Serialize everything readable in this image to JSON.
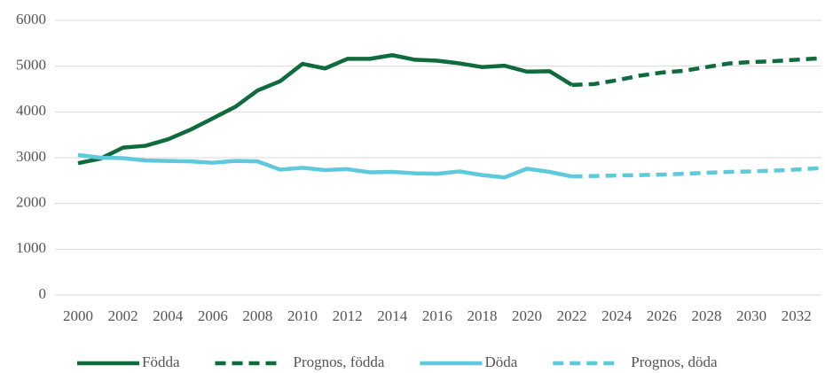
{
  "chart_data": {
    "type": "line",
    "x": [
      2000,
      2001,
      2002,
      2003,
      2004,
      2005,
      2006,
      2007,
      2008,
      2009,
      2010,
      2011,
      2012,
      2013,
      2014,
      2015,
      2016,
      2017,
      2018,
      2019,
      2020,
      2021,
      2022,
      2023,
      2024,
      2025,
      2026,
      2027,
      2028,
      2029,
      2030,
      2031,
      2032,
      2033
    ],
    "series": [
      {
        "name": "Födda",
        "color": "#0f6b3c",
        "dashed": false,
        "values": [
          2880,
          2980,
          3220,
          3260,
          3400,
          3610,
          3860,
          4110,
          4470,
          4670,
          5050,
          4950,
          5160,
          5160,
          5240,
          5140,
          5120,
          5060,
          4980,
          5010,
          4880,
          4890,
          4590,
          null,
          null,
          null,
          null,
          null,
          null,
          null,
          null,
          null,
          null,
          null
        ]
      },
      {
        "name": "Prognos, födda",
        "color": "#0f6b3c",
        "dashed": true,
        "values": [
          null,
          null,
          null,
          null,
          null,
          null,
          null,
          null,
          null,
          null,
          null,
          null,
          null,
          null,
          null,
          null,
          null,
          null,
          null,
          null,
          null,
          null,
          4590,
          4610,
          4690,
          4790,
          4860,
          4900,
          4980,
          5060,
          5090,
          5110,
          5140,
          5170
        ]
      },
      {
        "name": "Döda",
        "color": "#5ec9da",
        "dashed": false,
        "values": [
          3060,
          3000,
          2990,
          2940,
          2930,
          2920,
          2890,
          2930,
          2920,
          2740,
          2780,
          2730,
          2750,
          2680,
          2690,
          2660,
          2650,
          2700,
          2620,
          2570,
          2760,
          2690,
          2590,
          null,
          null,
          null,
          null,
          null,
          null,
          null,
          null,
          null,
          null,
          null
        ]
      },
      {
        "name": "Prognos, döda",
        "color": "#5ec9da",
        "dashed": true,
        "values": [
          null,
          null,
          null,
          null,
          null,
          null,
          null,
          null,
          null,
          null,
          null,
          null,
          null,
          null,
          null,
          null,
          null,
          null,
          null,
          null,
          null,
          null,
          2590,
          2600,
          2610,
          2620,
          2630,
          2650,
          2670,
          2690,
          2700,
          2720,
          2740,
          2770
        ]
      }
    ],
    "xlim": [
      2000,
      2033
    ],
    "xticks": [
      2000,
      2002,
      2004,
      2006,
      2008,
      2010,
      2012,
      2014,
      2016,
      2018,
      2020,
      2022,
      2024,
      2026,
      2028,
      2030,
      2032
    ],
    "ylim": [
      0,
      6000
    ],
    "yticks": [
      0,
      1000,
      2000,
      3000,
      4000,
      5000,
      6000
    ],
    "grid": true,
    "legend": "bottom"
  }
}
